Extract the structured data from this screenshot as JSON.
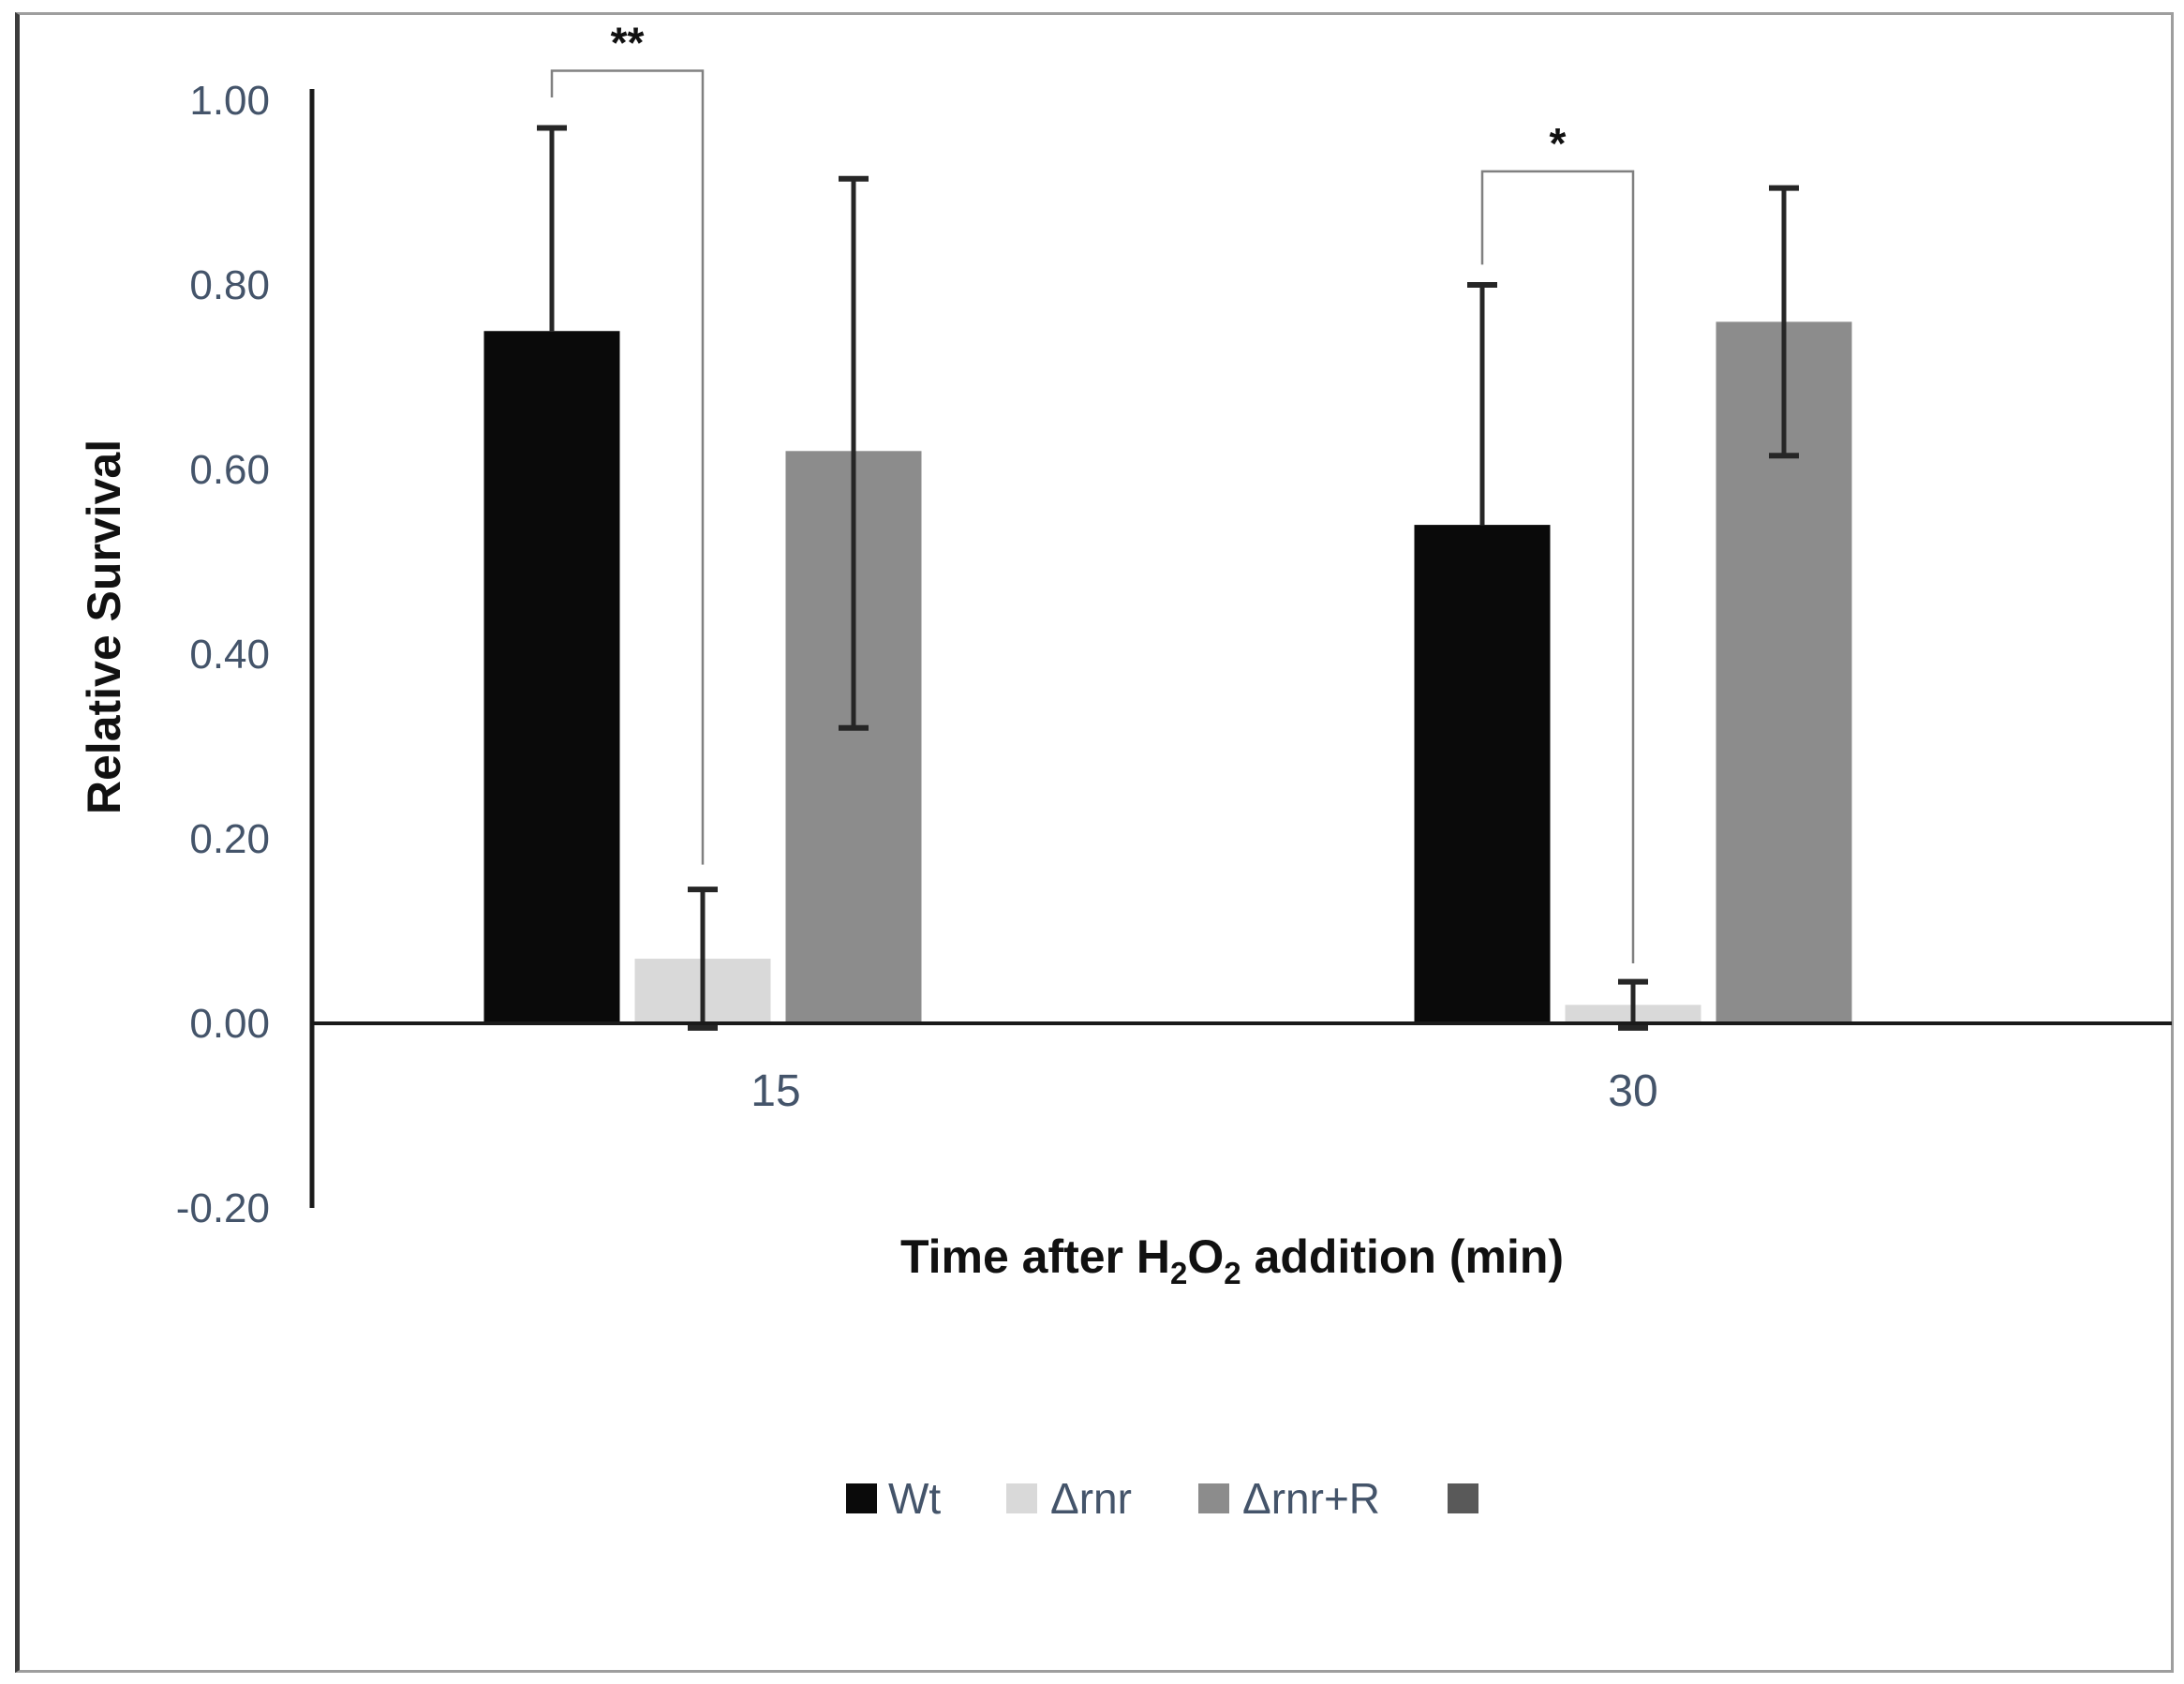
{
  "chart_data": {
    "type": "bar",
    "categories": [
      "15",
      "30"
    ],
    "series": [
      {
        "name": "Wt",
        "color": "#0a0a0a",
        "values": [
          0.75,
          0.54
        ],
        "err_hi": [
          0.97,
          0.8
        ],
        "err_lo": [
          null,
          null
        ]
      },
      {
        "name": "Δrnr",
        "color": "#d9d9d9",
        "values": [
          0.07,
          0.02
        ],
        "err_hi": [
          0.145,
          0.045
        ],
        "err_lo": [
          -0.005,
          -0.005
        ]
      },
      {
        "name": "Δrnr+R",
        "color": "#8c8c8c",
        "values": [
          0.62,
          0.76
        ],
        "err_hi": [
          0.915,
          0.905
        ],
        "err_lo": [
          0.32,
          0.615
        ]
      },
      {
        "name": "",
        "color": "#595959",
        "values": [
          null,
          null
        ],
        "err_hi": null,
        "err_lo": null
      }
    ],
    "xlabel": "Time after H2O2 addition (min)",
    "xlabel_parts": [
      {
        "t": "Time after H"
      },
      {
        "t": "2",
        "sub": true
      },
      {
        "t": "O"
      },
      {
        "t": "2",
        "sub": true
      },
      {
        "t": " addition (min)"
      }
    ],
    "ylabel": "Relative Survival",
    "yticks": [
      "1.00",
      "0.80",
      "0.60",
      "0.40",
      "0.20",
      "0.00",
      "-0.20"
    ],
    "ylim": [
      -0.2,
      1.0
    ],
    "grid": false,
    "legend_position": "bottom-center",
    "significance": [
      {
        "label": "**",
        "category": "15",
        "between": [
          "Wt",
          "Δrnr"
        ],
        "bar_y": 1.032,
        "left_end": 1.003,
        "right_end": 0.172
      },
      {
        "label": "*",
        "category": "30",
        "between": [
          "Wt",
          "Δrnr"
        ],
        "bar_y": 0.923,
        "left_end": 0.822,
        "right_end": 0.065
      }
    ]
  },
  "colors": {
    "tick_text": "#44546A",
    "axis_line": "#1a1a1a",
    "error_bar": "#262626",
    "bracket_line": "#808080",
    "frame_border": "#9e9e9e",
    "frame_border_left": "#3d3d3d",
    "background": "#ffffff"
  }
}
